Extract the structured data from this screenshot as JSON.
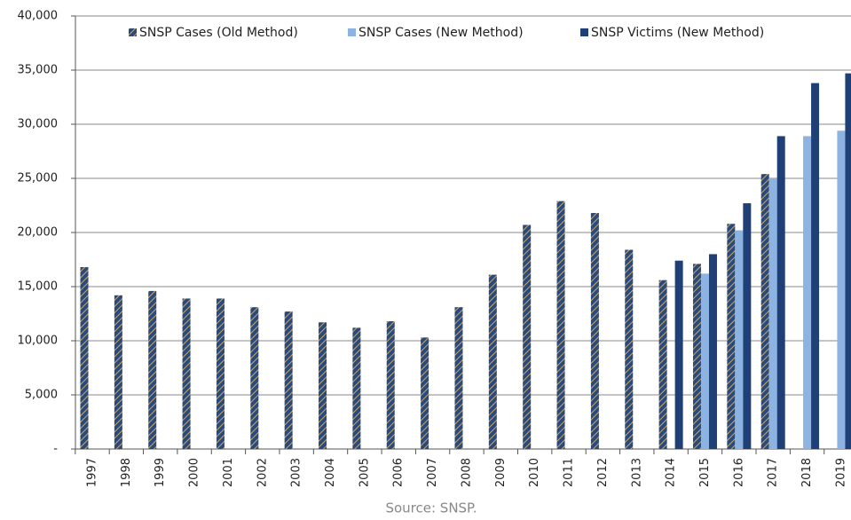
{
  "chart_data": {
    "type": "bar",
    "categories": [
      "1997",
      "1998",
      "1999",
      "2000",
      "2001",
      "2002",
      "2003",
      "2004",
      "2005",
      "2006",
      "2007",
      "2008",
      "2009",
      "2010",
      "2011",
      "2012",
      "2013",
      "2014",
      "2015",
      "2016",
      "2017",
      "2018",
      "2019"
    ],
    "series": [
      {
        "name": "SNSP Cases (Old Method)",
        "color": "#2b4a7a",
        "hatch_color": "#c9a86a",
        "values": [
          16800,
          14200,
          14600,
          13900,
          13900,
          13100,
          12700,
          11700,
          11200,
          11800,
          10300,
          13100,
          16100,
          20700,
          22900,
          21800,
          18400,
          15600,
          17100,
          20800,
          25400,
          null,
          null
        ]
      },
      {
        "name": "SNSP Cases (New Method)",
        "color": "#8db3e2",
        "values": [
          null,
          null,
          null,
          null,
          null,
          null,
          null,
          null,
          null,
          null,
          null,
          null,
          null,
          null,
          null,
          null,
          null,
          null,
          16200,
          20200,
          25000,
          28900,
          29400
        ]
      },
      {
        "name": "SNSP Victims (New Method)",
        "color": "#1f3f77",
        "values": [
          null,
          null,
          null,
          null,
          null,
          null,
          null,
          null,
          null,
          null,
          null,
          null,
          null,
          null,
          null,
          null,
          null,
          17400,
          18000,
          22700,
          28900,
          33800,
          34700
        ]
      }
    ],
    "ylim": [
      0,
      40000
    ],
    "yticks": [
      {
        "value": 0,
        "label": "-"
      },
      {
        "value": 5000,
        "label": "5,000"
      },
      {
        "value": 10000,
        "label": "10,000"
      },
      {
        "value": 15000,
        "label": "15,000"
      },
      {
        "value": 20000,
        "label": "20,000"
      },
      {
        "value": 25000,
        "label": "25,000"
      },
      {
        "value": 30000,
        "label": "30,000"
      },
      {
        "value": 35000,
        "label": "35,000"
      },
      {
        "value": 40000,
        "label": "40,000"
      }
    ],
    "grid": true,
    "legend": "top",
    "source": "Source: SNSP."
  }
}
